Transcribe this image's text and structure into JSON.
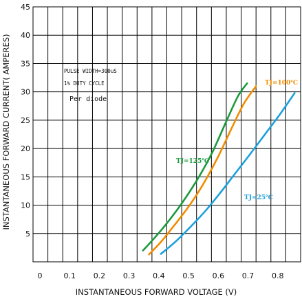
{
  "chart_data": {
    "type": "line",
    "xlabel": "INSTANTANEOUS FORWARD VOLTAGE (V)",
    "ylabel": "INSTANTANEOUS FORWARD CURRENT( AMPERES)",
    "xlim": [
      0,
      0.9
    ],
    "ylim": [
      0,
      45
    ],
    "x_ticks": [
      0,
      0.1,
      0.2,
      0.3,
      0.4,
      0.5,
      0.6,
      0.7,
      0.8
    ],
    "x_tick_labels": [
      "0",
      "0.1",
      "0.2",
      "0.3",
      "0.4",
      "0.5",
      "0.6",
      "0.7",
      "0.8"
    ],
    "y_ticks": [
      5,
      10,
      15,
      20,
      25,
      30,
      35,
      40,
      45
    ],
    "y_tick_labels": [
      "5",
      "10",
      "15",
      "20",
      "25",
      "30",
      "35",
      "40",
      "45"
    ],
    "grid": true,
    "annotations": {
      "line1": "PULSE WIDTH=300uS",
      "line2": "1% DUTY CYCLE",
      "line3": "Per diode"
    },
    "series": [
      {
        "name": "TJ=125℃",
        "color": "#1a9a3c",
        "x": [
          0.37,
          0.41,
          0.45,
          0.5,
          0.55,
          0.6,
          0.65,
          0.69,
          0.72
        ],
        "y": [
          2.0,
          4.3,
          6.8,
          10.3,
          14.3,
          19.0,
          24.8,
          29.3,
          31.5
        ]
      },
      {
        "name": "TJ=100℃",
        "color": "#f08c00",
        "x": [
          0.39,
          0.43,
          0.47,
          0.52,
          0.57,
          0.62,
          0.67,
          0.71,
          0.75
        ],
        "y": [
          1.3,
          3.5,
          6.1,
          9.5,
          13.5,
          18.3,
          23.8,
          28.0,
          31.0
        ]
      },
      {
        "name": "TJ=25℃",
        "color": "#1ba0dc",
        "x": [
          0.43,
          0.48,
          0.53,
          0.58,
          0.63,
          0.68,
          0.73,
          0.78,
          0.83,
          0.88
        ],
        "y": [
          1.4,
          3.6,
          6.2,
          9.0,
          12.2,
          15.6,
          19.0,
          22.5,
          26.0,
          29.8
        ]
      }
    ]
  }
}
